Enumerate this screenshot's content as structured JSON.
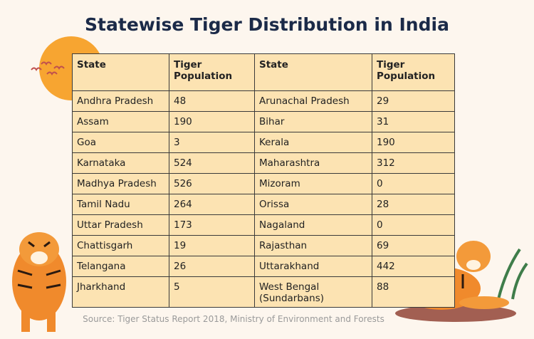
{
  "title": "Statewise Tiger Distribution in India",
  "table": {
    "header": [
      "State",
      "Tiger Population",
      "State",
      "Tiger Population"
    ],
    "rows": [
      [
        "Andhra Pradesh",
        48,
        "Arunachal Pradesh",
        29
      ],
      [
        "Assam",
        190,
        "Bihar",
        31
      ],
      [
        "Goa",
        3,
        "Kerala",
        190
      ],
      [
        "Karnataka",
        524,
        "Maharashtra",
        312
      ],
      [
        "Madhya Pradesh",
        526,
        "Mizoram",
        0
      ],
      [
        "Tamil Nadu",
        264,
        "Orissa",
        28
      ],
      [
        "Uttar Pradesh",
        173,
        "Nagaland",
        0
      ],
      [
        "Chattisgarh",
        19,
        "Rajasthan",
        69
      ],
      [
        "Telangana",
        26,
        "Uttarakhand",
        442
      ],
      [
        "Jharkhand",
        5,
        "West Bengal (Sundarbans)",
        88
      ]
    ]
  },
  "source": "Source: Tiger Status Report 2018, Ministry of Environment and Forests"
}
